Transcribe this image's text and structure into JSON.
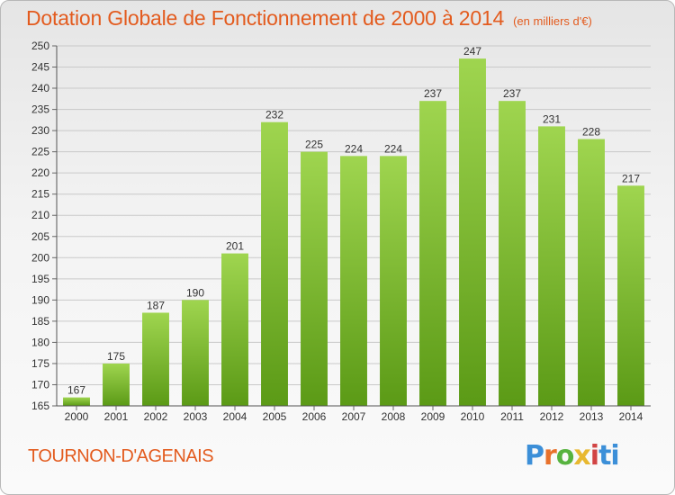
{
  "header": {
    "title": "Dotation Globale de Fonctionnement de 2000 à 2014",
    "subtitle": "(en milliers d'€)"
  },
  "footer": {
    "commune": "TOURNON-D'AGENAIS",
    "logo": "Proxiti"
  },
  "colors": {
    "title": "#e35b1e",
    "bar_top": "#9fd54f",
    "bar_bottom": "#5b9a16",
    "grid": "#c9c9c9",
    "text": "#333333"
  },
  "chart_data": {
    "type": "bar",
    "title": "Dotation Globale de Fonctionnement de 2000 à 2014",
    "subtitle": "(en milliers d'€)",
    "xlabel": "",
    "ylabel": "",
    "categories": [
      "2000",
      "2001",
      "2002",
      "2003",
      "2004",
      "2005",
      "2006",
      "2007",
      "2008",
      "2009",
      "2010",
      "2011",
      "2012",
      "2013",
      "2014"
    ],
    "values": [
      167,
      175,
      187,
      190,
      201,
      232,
      225,
      224,
      224,
      237,
      247,
      237,
      231,
      228,
      217
    ],
    "ylim": [
      165,
      250
    ],
    "ytick_step": 5,
    "grid": true,
    "legend": "none",
    "data_labels": true
  }
}
